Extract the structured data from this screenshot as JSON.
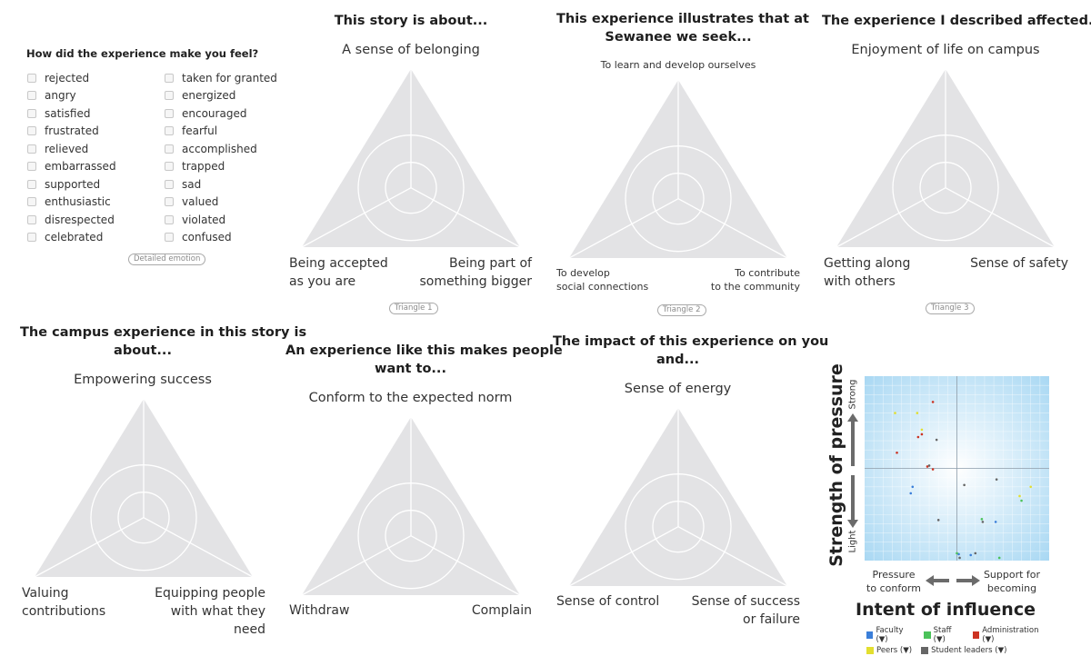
{
  "emotion_panel": {
    "question": "How did the experience make you feel?",
    "col1": [
      "rejected",
      "angry",
      "satisfied",
      "frustrated",
      "relieved",
      "embarrassed",
      "supported",
      "enthusiastic",
      "disrespected",
      "celebrated"
    ],
    "col2": [
      "taken for granted",
      "energized",
      "encouraged",
      "fearful",
      "accomplished",
      "trapped",
      "sad",
      "valued",
      "violated",
      "confused"
    ],
    "badge": "Detailed emotion"
  },
  "triangles": [
    {
      "title": "This story is about...",
      "top": "A sense of belonging",
      "left": "Being accepted\nas you are",
      "right": "Being part of\nsomething bigger",
      "badge": "Triangle 1"
    },
    {
      "title": "This experience illustrates that at\nSewanee we seek...",
      "top": "To learn and develop ourselves",
      "left": "To develop\nsocial connections",
      "right": "To contribute\nto the community",
      "badge": "Triangle 2"
    },
    {
      "title": "The experience I described affected...",
      "top": "Enjoyment of life on campus",
      "left": "Getting along\nwith others",
      "right": "Sense of safety",
      "badge": "Triangle 3"
    },
    {
      "title": "The campus experience in this story is\nabout...",
      "top": "Empowering success",
      "left": "Valuing\ncontributions",
      "right": "Equipping people\nwith what they\nneed"
    },
    {
      "title": "An experience like this makes people\nwant to...",
      "top": "Conform to the expected norm",
      "left": "Withdraw",
      "right": "Complain"
    },
    {
      "title": "The impact of this experience on you\nand...",
      "top": "Sense of energy",
      "left": "Sense of control",
      "right": "Sense of success\nor failure"
    }
  ],
  "chart_data": {
    "type": "scatter",
    "ylabel": "Strength of pressure",
    "y_top": "Strong",
    "y_bottom": "Light",
    "xlabel": "Intent of influence",
    "x_left": "Pressure\nto conform",
    "x_right": "Support for\nbecoming",
    "xlim": [
      -1,
      1
    ],
    "ylim": [
      -1,
      1
    ],
    "grid": true,
    "legend_position": "bottom",
    "series": [
      {
        "name": "Faculty (▼)",
        "color": "#3b7fd9",
        "points": [
          [
            -0.48,
            -0.2
          ],
          [
            -0.5,
            -0.27
          ],
          [
            0.42,
            -0.58
          ],
          [
            0.02,
            -0.93
          ],
          [
            0.15,
            -0.94
          ]
        ]
      },
      {
        "name": "Staff (▼)",
        "color": "#4bc25a",
        "points": [
          [
            0.27,
            -0.55
          ],
          [
            0.46,
            -0.97
          ],
          [
            0.7,
            -0.35
          ],
          [
            0.0,
            -0.92
          ]
        ]
      },
      {
        "name": "Administration (▼)",
        "color": "#cc3322",
        "points": [
          [
            -0.26,
            0.72
          ],
          [
            -0.38,
            0.37
          ],
          [
            -0.42,
            0.34
          ],
          [
            -0.65,
            0.17
          ],
          [
            -0.32,
            0.02
          ],
          [
            -0.26,
            -0.01
          ]
        ]
      },
      {
        "name": "Peers (▼)",
        "color": "#e3df2f",
        "points": [
          [
            -0.43,
            0.6
          ],
          [
            -0.38,
            0.42
          ],
          [
            -0.67,
            0.6
          ],
          [
            0.8,
            -0.2
          ],
          [
            0.68,
            -0.3
          ]
        ]
      },
      {
        "name": "Student leaders (▼)",
        "color": "#666666",
        "points": [
          [
            -0.3,
            0.03
          ],
          [
            -0.22,
            0.31
          ],
          [
            0.43,
            -0.12
          ],
          [
            0.08,
            -0.18
          ],
          [
            -0.2,
            -0.56
          ],
          [
            0.28,
            -0.58
          ],
          [
            0.2,
            -0.92
          ],
          [
            0.03,
            -0.97
          ]
        ]
      }
    ]
  }
}
